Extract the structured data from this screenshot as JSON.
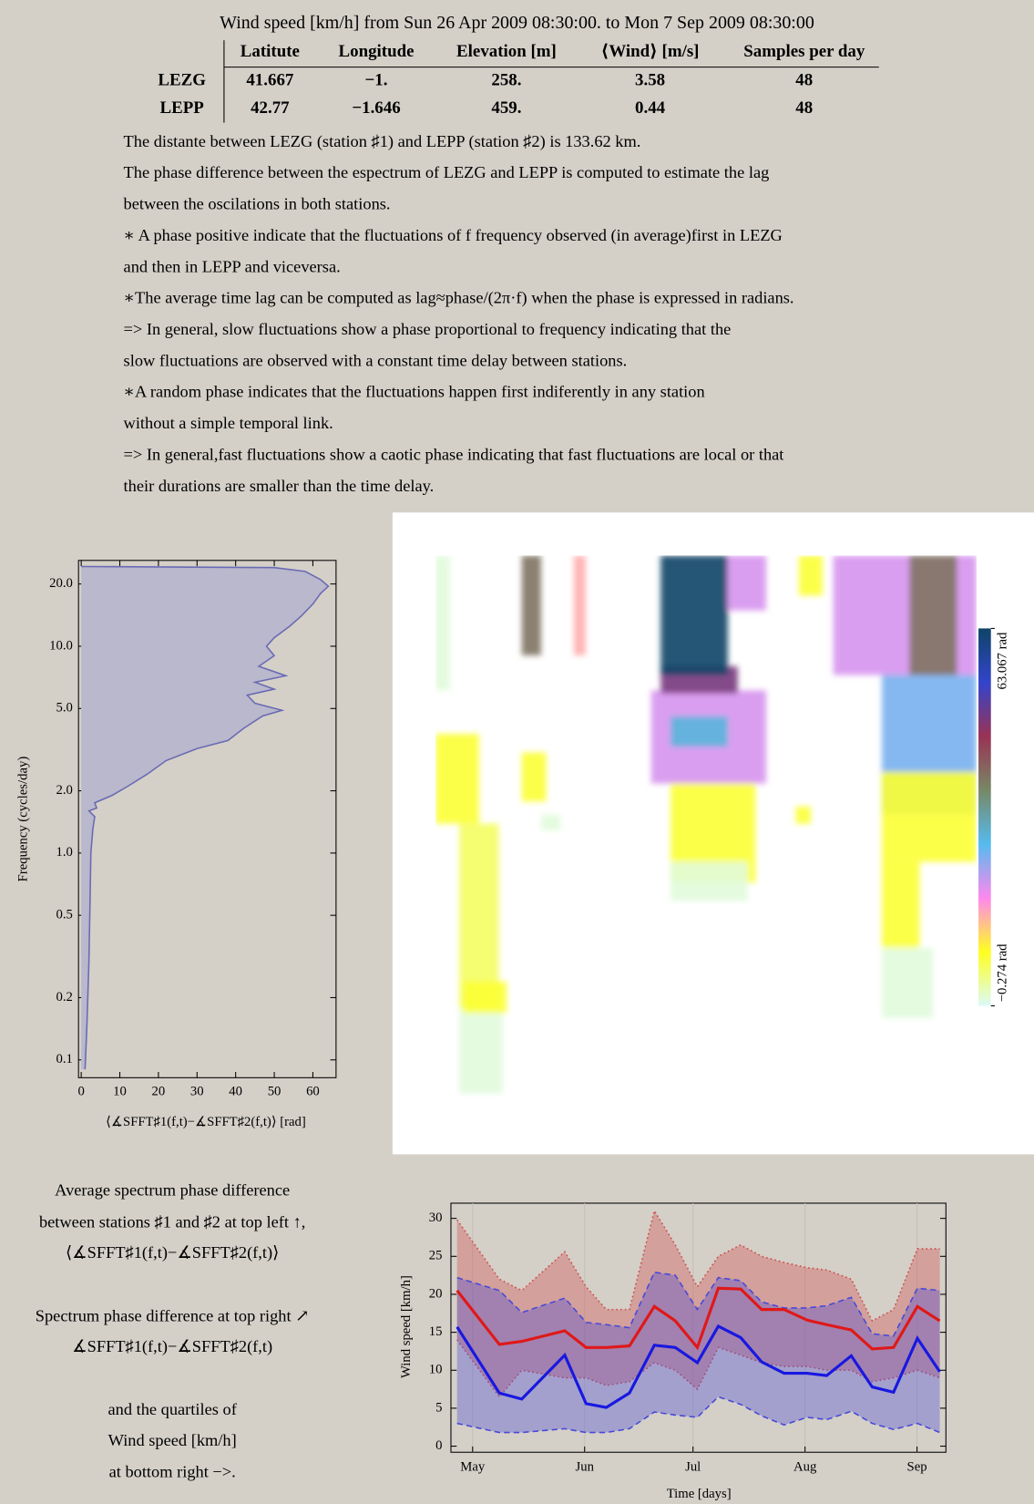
{
  "header": {
    "title": "Wind speed [km/h] from Sun 26 Apr 2009 08:30:00. to Mon 7 Sep 2009 08:30:00"
  },
  "table": {
    "columns": [
      "Latitute",
      "Longitude",
      "Elevation [m]",
      "⟨Wind⟩ [m/s]",
      "Samples per day"
    ],
    "rows": [
      [
        "LEZG",
        "41.667",
        "−1.",
        "258.",
        "3.58",
        "48"
      ],
      [
        "LEPP",
        "42.77",
        "−1.646",
        "459.",
        "0.44",
        "48"
      ]
    ]
  },
  "notes": [
    "The distante between LEZG (station ♯1) and LEPP (station ♯2) is 133.62 km.",
    "The phase difference between the espectrum of LEZG and LEPP is computed to estimate the lag",
    "between the oscilations in both stations.",
    "∗ A phase positive indicate that the fluctuations of f frequency observed (in average)first in LEZG",
    "and then in LEPP and viceversa.",
    "∗The average time lag can be computed as lag≈phase/(2π·f) when the phase is expressed in radians.",
    "=> In general, slow fluctuations show a phase proportional to frequency indicating that the",
    " slow fluctuations are observed with a constant time delay between stations.",
    "∗A random phase indicates that the fluctuations happen first indiferently in any station",
    "without a simple temporal link.",
    "=> In general,fast fluctuations show a caotic phase indicating that fast fluctuations are local or that",
    "their durations are smaller than the time delay."
  ],
  "caption": [
    "Average spectrum phase difference",
    "between stations ♯1 and ♯2 at top left ↑,",
    "⟨∡SFFT♯1(f,t)−∡SFFT♯2(f,t)⟩",
    "Spectrum phase difference at top right ↗",
    "∡SFFT♯1(f,t)−∡SFFT♯2(f,t)",
    "and the quartiles of",
    "Wind speed [km/h]",
    "at bottom right −>."
  ],
  "chart_data": [
    {
      "type": "area",
      "x_label": "⟨∡SFFT♯1(f,t)−∡SFFT♯2(f,t)⟩ [rad]",
      "y_label": "Frequency (cycles/day)",
      "color": "#6a6ab4",
      "fill": "#b9b8cc",
      "x": [
        1,
        1.5,
        2,
        2.3,
        2.5,
        3,
        3.5,
        2,
        4,
        3.5,
        8,
        12,
        17,
        22,
        30,
        38,
        42,
        47,
        52,
        45,
        43,
        50,
        45,
        53,
        46,
        50,
        48,
        50,
        54,
        57,
        60,
        62,
        64,
        62,
        58,
        50,
        0
      ],
      "y": [
        0.09,
        0.15,
        0.3,
        0.6,
        1.0,
        1.3,
        1.5,
        1.6,
        1.65,
        1.75,
        1.9,
        2.1,
        2.4,
        2.8,
        3.2,
        3.5,
        4.0,
        4.6,
        4.9,
        5.3,
        5.8,
        6.2,
        6.7,
        7.2,
        8,
        9,
        10,
        11,
        12.5,
        14,
        16,
        18,
        19.5,
        21,
        23,
        24,
        24.3
      ],
      "xlim": [
        -0.7,
        66
      ],
      "xticks": [
        0,
        10,
        20,
        30,
        40,
        50,
        60
      ],
      "ylim": [
        0.082,
        26
      ],
      "log_y": true,
      "yticks": [
        0.1,
        0.2,
        0.5,
        {
          "value": 1,
          "label": "1.0"
        },
        {
          "value": 2,
          "label": "2.0"
        },
        {
          "value": 5,
          "label": "5.0"
        },
        {
          "value": 10,
          "label": "10.0"
        },
        {
          "value": 20,
          "label": "20.0"
        }
      ]
    },
    {
      "type": "heatmap",
      "xlim": [
        -1,
        136
      ],
      "ylim": [
        0.082,
        26
      ],
      "log_y": true,
      "zlim": [
        -0.274,
        63.067
      ],
      "zticks": [
        {
          "value": -0.274,
          "label": "−0.274 rad"
        },
        {
          "value": 63.067,
          "label": "63.067 rad"
        }
      ],
      "colormap": [
        "#dcfafa",
        "#ffff20",
        "#ff88ee",
        "#55bbee",
        "#778866",
        "#993355",
        "#3344cc",
        "#0e4466"
      ],
      "patches": [
        {
          "x": [
            -1,
            2.6
          ],
          "y": [
            6.2,
            26
          ],
          "value": 1
        },
        {
          "x": [
            -1,
            10
          ],
          "y": [
            1.5,
            3.9
          ],
          "value": 8
        },
        {
          "x": [
            5,
            15
          ],
          "y": [
            0.21,
            1.5
          ],
          "value": 6
        },
        {
          "x": [
            5,
            16
          ],
          "y": [
            0.085,
            0.21
          ],
          "value": 1
        },
        {
          "x": [
            6,
            17
          ],
          "y": [
            0.2,
            0.28
          ],
          "value": 8
        },
        {
          "x": [
            20.8,
            25.7
          ],
          "y": [
            9,
            26
          ],
          "value": 38
        },
        {
          "x": [
            20.8,
            27
          ],
          "y": [
            1.9,
            3.2
          ],
          "value": 8
        },
        {
          "x": [
            25.7,
            30.6
          ],
          "y": [
            1.4,
            1.65
          ],
          "value": 1
        },
        {
          "x": [
            34,
            37
          ],
          "y": [
            9,
            26
          ],
          "value": 15
        },
        {
          "x": [
            53.6,
            82.7
          ],
          "y": [
            2.3,
            6.2
          ],
          "value": 20
        },
        {
          "x": [
            58.5,
            73
          ],
          "y": [
            3.4,
            4.7
          ],
          "value": 28
        },
        {
          "x": [
            58.5,
            80
          ],
          "y": [
            0.8,
            2.3
          ],
          "value": 8
        },
        {
          "x": [
            58.5,
            78
          ],
          "y": [
            0.66,
            1
          ],
          "value": 1
        },
        {
          "x": [
            56,
            75.5
          ],
          "y": [
            6,
            8
          ],
          "value": 48
        },
        {
          "x": [
            56,
            73
          ],
          "y": [
            7.3,
            26
          ],
          "value": 63
        },
        {
          "x": [
            73,
            82.7
          ],
          "y": [
            14.5,
            26
          ],
          "value": 20
        },
        {
          "x": [
            90.2,
            94
          ],
          "y": [
            1.5,
            1.8
          ],
          "value": 8
        },
        {
          "x": [
            91,
            97
          ],
          "y": [
            17,
            26
          ],
          "value": 8
        },
        {
          "x": [
            99.7,
            136
          ],
          "y": [
            7.3,
            26
          ],
          "value": 20
        },
        {
          "x": [
            119,
            131
          ],
          "y": [
            7.3,
            26
          ],
          "value": 38
        },
        {
          "x": [
            112,
            136
          ],
          "y": [
            1.65,
            7.3
          ],
          "value": 25
        },
        {
          "x": [
            112,
            136
          ],
          "y": [
            1,
            2.6
          ],
          "value": 8
        },
        {
          "x": [
            112,
            121.6
          ],
          "y": [
            0.4,
            1
          ],
          "value": 8
        },
        {
          "x": [
            112,
            125
          ],
          "y": [
            0.19,
            0.4
          ],
          "value": 1
        }
      ]
    },
    {
      "type": "line",
      "x_label": "Time [days]",
      "y_label": "Wind speed [km/h]",
      "x": [
        0.7,
        12.4,
        18.6,
        30.5,
        36.4,
        42,
        48.4,
        55.3,
        61.1,
        67.2,
        73,
        79.2,
        85,
        91.2,
        97.6,
        103,
        109.8,
        115.6,
        121.5,
        128.1,
        134.3
      ],
      "xlim": [
        -1,
        136
      ],
      "xticks": [
        {
          "value": 5,
          "label": "May"
        },
        {
          "value": 36,
          "label": "Jun"
        },
        {
          "value": 66,
          "label": "Jul"
        },
        {
          "value": 97,
          "label": "Aug"
        },
        {
          "value": 128,
          "label": "Sep"
        }
      ],
      "ylim": [
        -0.8,
        32
      ],
      "yticks": [
        0,
        5,
        10,
        15,
        20,
        25,
        30
      ],
      "grid": true,
      "bands": [
        {
          "color": "#d04848",
          "dash": "dotted",
          "low": [
            14,
            6.5,
            10,
            9,
            9,
            8,
            8.5,
            11,
            10,
            7.5,
            13,
            12,
            11,
            10.5,
            10.5,
            10,
            10,
            8.5,
            9,
            10,
            9
          ],
          "high": [
            29.8,
            22,
            20.5,
            25.6,
            21,
            18,
            18,
            31,
            26.5,
            21,
            25,
            26.5,
            25,
            24.2,
            23.5,
            23.2,
            22,
            16.5,
            18,
            26,
            26
          ]
        },
        {
          "color": "#4848d8",
          "dash": "dashed",
          "low": [
            3,
            1.8,
            1.8,
            2.3,
            1.8,
            1.8,
            2.3,
            4.5,
            4.1,
            3.8,
            6.5,
            5.5,
            4,
            2.8,
            3.8,
            3.5,
            4.6,
            3,
            2.2,
            3,
            1.8
          ],
          "high": [
            22.2,
            20.5,
            17.6,
            19.5,
            16.3,
            16,
            15.6,
            22.9,
            22.5,
            18,
            22.2,
            21.8,
            19,
            18.2,
            18.2,
            18.5,
            19.6,
            14.8,
            14.5,
            20.8,
            20.5
          ]
        }
      ],
      "series": [
        {
          "color": "#e01818",
          "values": [
            20.5,
            13.4,
            13.8,
            15.2,
            13,
            13,
            13.2,
            18.4,
            16.5,
            13,
            20.8,
            20.7,
            18,
            18,
            16.6,
            16,
            15.3,
            12.8,
            13,
            18.4,
            16.5
          ]
        },
        {
          "color": "#1818e0",
          "values": [
            15.7,
            7,
            6.2,
            12,
            5.6,
            5.1,
            7,
            13.3,
            13,
            11,
            15.8,
            14.3,
            11.1,
            9.6,
            9.6,
            9.3,
            11.9,
            7.8,
            7.1,
            14.2,
            9.8
          ]
        }
      ]
    }
  ]
}
